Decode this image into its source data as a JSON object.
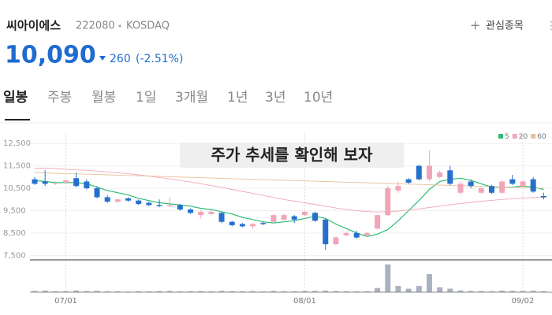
{
  "header": {
    "name": "씨아이에스",
    "code": "222080",
    "market": "KOSDAQ",
    "watch": "관심종목",
    "price": "10,090",
    "change": "260",
    "change_pct": "(-2.51%)"
  },
  "tabs": [
    "일봉",
    "주봉",
    "월봉",
    "1일",
    "3개월",
    "1년",
    "3년",
    "10년"
  ],
  "chart_data": {
    "type": "candlestick",
    "annotation": "주가 추세를 확인해 보자",
    "categories": [
      null,
      null,
      null,
      "07/01",
      null,
      null,
      null,
      null,
      null,
      null,
      null,
      null,
      null,
      null,
      null,
      null,
      null,
      null,
      null,
      null,
      null,
      null,
      null,
      null,
      null,
      null,
      "08/01",
      null,
      null,
      null,
      null,
      null,
      null,
      null,
      null,
      null,
      null,
      null,
      null,
      null,
      null,
      null,
      null,
      null,
      null,
      null,
      null,
      "09/02",
      null,
      null
    ],
    "open": [
      10900,
      10800,
      10700,
      10750,
      10950,
      10800,
      10500,
      10100,
      9900,
      10050,
      9950,
      9850,
      9750,
      9700,
      9750,
      9550,
      9300,
      9350,
      9400,
      9000,
      8900,
      8800,
      8950,
      9000,
      9100,
      9250,
      9300,
      9400,
      9100,
      8000,
      8400,
      8500,
      8400,
      8700,
      9300,
      10400,
      10900,
      11500,
      10900,
      11000,
      11300,
      10300,
      10800,
      10300,
      10600,
      10300,
      10900,
      10600,
      10900,
      10150
    ],
    "high": [
      11000,
      11300,
      10800,
      10900,
      11200,
      10900,
      10600,
      10200,
      10050,
      10100,
      10000,
      9900,
      10000,
      10100,
      9800,
      9600,
      9500,
      9500,
      9450,
      9050,
      8950,
      8950,
      9000,
      9350,
      9350,
      9300,
      9500,
      9450,
      9150,
      8350,
      8550,
      8600,
      8550,
      9300,
      10600,
      10800,
      10950,
      11550,
      12200,
      11300,
      11500,
      10800,
      10900,
      10550,
      10650,
      10850,
      11100,
      10850,
      11000,
      10300
    ],
    "low": [
      10650,
      10600,
      10650,
      10700,
      10550,
      10450,
      10050,
      9850,
      9850,
      9900,
      9750,
      9700,
      9650,
      9650,
      9500,
      9350,
      9150,
      9300,
      8950,
      8800,
      8750,
      8700,
      8850,
      8950,
      9050,
      8950,
      9250,
      9000,
      7750,
      7950,
      8350,
      8250,
      8350,
      8650,
      9250,
      10300,
      10700,
      10850,
      10800,
      10950,
      10650,
      10200,
      10500,
      10250,
      10250,
      10250,
      10650,
      10500,
      10300,
      10000
    ],
    "close": [
      10700,
      10700,
      10750,
      10850,
      10600,
      10500,
      10100,
      9900,
      10000,
      9950,
      9800,
      9750,
      9700,
      9750,
      9550,
      9400,
      9450,
      9450,
      9000,
      8850,
      8800,
      8900,
      8900,
      9300,
      9300,
      9100,
      9450,
      9050,
      8000,
      8300,
      8500,
      8300,
      8500,
      9300,
      10500,
      10600,
      10750,
      10900,
      11500,
      11200,
      10700,
      10700,
      10600,
      10500,
      10300,
      10800,
      10700,
      10800,
      10350,
      10090
    ],
    "up_color": "#f2a5b8",
    "down_color": "#2470cc",
    "volume": [
      90000,
      110000,
      60000,
      70000,
      120000,
      80000,
      100000,
      70000,
      60000,
      50000,
      70000,
      60000,
      80000,
      90000,
      60000,
      70000,
      80000,
      60000,
      90000,
      70000,
      60000,
      80000,
      50000,
      90000,
      70000,
      60000,
      80000,
      90000,
      110000,
      80000,
      70000,
      60000,
      70000,
      300000,
      2000000,
      450000,
      250000,
      450000,
      1300000,
      350000,
      250000,
      120000,
      90000,
      80000,
      70000,
      110000,
      90000,
      80000,
      100000,
      70000
    ],
    "volume_lim": [
      0,
      2100000
    ],
    "volume_color": "#aab2c2",
    "series": [
      {
        "name": "5",
        "color": "#2dbd74",
        "values": [
          10850,
          10800,
          10750,
          10750,
          10750,
          10700,
          10550,
          10400,
          10300,
          10200,
          10050,
          9950,
          9850,
          9800,
          9750,
          9700,
          9600,
          9550,
          9450,
          9350,
          9200,
          9100,
          9000,
          8950,
          9000,
          9050,
          9150,
          9250,
          9150,
          8900,
          8700,
          8500,
          8350,
          8450,
          8650,
          9050,
          9500,
          9950,
          10450,
          10800,
          10900,
          10950,
          10850,
          10700,
          10550,
          10550,
          10550,
          10600,
          10550,
          10450
        ]
      },
      {
        "name": "20",
        "color": "#f0a8ba",
        "values": [
          11400,
          11400,
          11380,
          11350,
          11320,
          11300,
          11270,
          11230,
          11190,
          11150,
          11100,
          11040,
          10980,
          10920,
          10850,
          10780,
          10700,
          10620,
          10540,
          10450,
          10360,
          10270,
          10180,
          10090,
          10000,
          9920,
          9850,
          9780,
          9700,
          9620,
          9550,
          9500,
          9460,
          9440,
          9450,
          9480,
          9530,
          9580,
          9640,
          9700,
          9760,
          9820,
          9870,
          9920,
          9960,
          10000,
          10030,
          10060,
          10080,
          10100
        ]
      },
      {
        "name": "60",
        "color": "#e8c09a",
        "values": [
          11200,
          11186,
          11171,
          11157,
          11143,
          11129,
          11114,
          11100,
          11086,
          11071,
          11057,
          11043,
          11029,
          11014,
          11000,
          10986,
          10971,
          10957,
          10943,
          10929,
          10914,
          10900,
          10886,
          10871,
          10857,
          10843,
          10829,
          10814,
          10800,
          10786,
          10771,
          10757,
          10743,
          10729,
          10714,
          10700,
          10686,
          10671,
          10657,
          10643,
          10629,
          10614,
          10600,
          10586,
          10571,
          10557,
          10543,
          10529,
          10514,
          10500
        ]
      }
    ],
    "ylim": [
      7300,
      13000
    ],
    "yticks": [
      {
        "value": 12500,
        "label": "12,500"
      },
      {
        "value": 11500,
        "label": "11,500"
      },
      {
        "value": 10500,
        "label": "10,500"
      },
      {
        "value": 9500,
        "label": "9,500"
      },
      {
        "value": 8500,
        "label": "8,500"
      },
      {
        "value": 7500,
        "label": "7,500"
      }
    ]
  }
}
